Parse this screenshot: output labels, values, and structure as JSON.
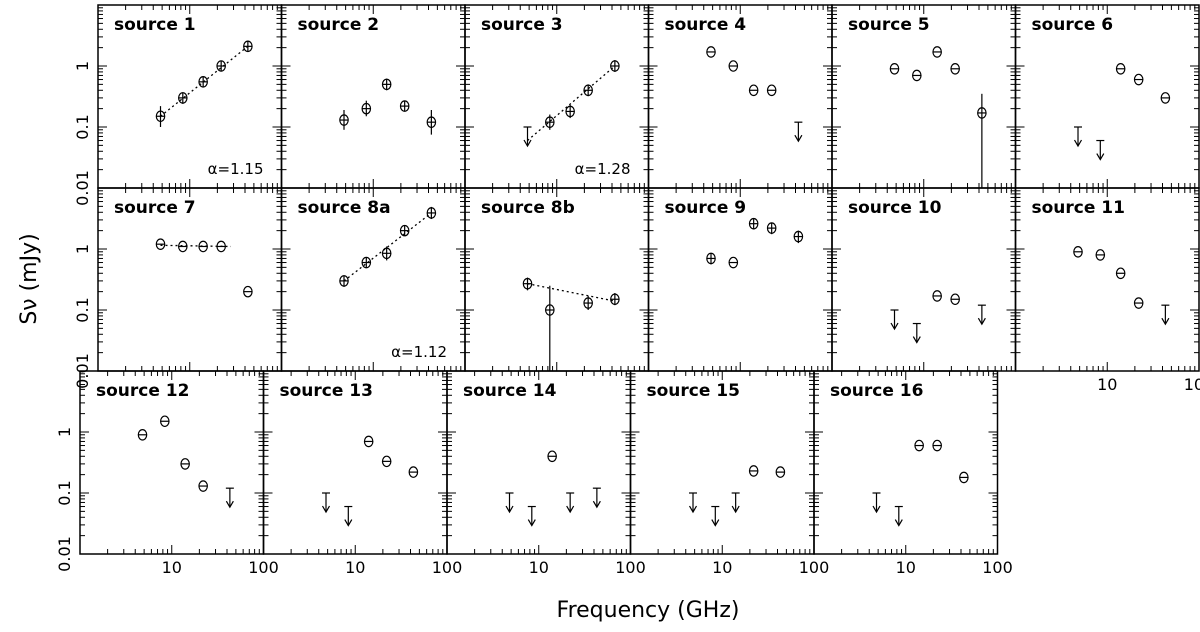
{
  "figure": {
    "ylabel": "Sν (mJy)",
    "xlabel": "Frequency (GHz)"
  },
  "chart_data": {
    "type": "scatter",
    "xscale": "log",
    "yscale": "log",
    "xlim": [
      1,
      100
    ],
    "ylim": [
      0.01,
      10
    ],
    "x_tick_labels": [
      "10",
      "100"
    ],
    "y_tick_labels": [
      "0.01",
      "0.1",
      "1"
    ],
    "xlabel": "Frequency (GHz)",
    "ylabel": "Sν (mJy)",
    "panels": [
      {
        "title": "source 1",
        "row": 0,
        "col": 0,
        "points": [
          {
            "x": 4.8,
            "y": 0.15,
            "err": [
              0.1,
              0.22
            ]
          },
          {
            "x": 8.4,
            "y": 0.3,
            "err": [
              0.24,
              0.37
            ]
          },
          {
            "x": 14,
            "y": 0.55,
            "err": [
              0.45,
              0.67
            ]
          },
          {
            "x": 22,
            "y": 1.0,
            "err": [
              0.82,
              1.22
            ]
          },
          {
            "x": 43,
            "y": 2.1,
            "err": [
              1.7,
              2.6
            ]
          }
        ],
        "upper_limits": [],
        "fit": {
          "x": [
            4.8,
            43
          ],
          "y": [
            0.15,
            2.1
          ]
        },
        "alpha_label": "α=1.15"
      },
      {
        "title": "source 2",
        "row": 0,
        "col": 1,
        "points": [
          {
            "x": 4.8,
            "y": 0.13,
            "err": [
              0.09,
              0.19
            ]
          },
          {
            "x": 8.4,
            "y": 0.2,
            "err": [
              0.15,
              0.27
            ]
          },
          {
            "x": 14,
            "y": 0.5,
            "err": [
              0.4,
              0.62
            ]
          },
          {
            "x": 22,
            "y": 0.22,
            "err": [
              0.18,
              0.27
            ]
          },
          {
            "x": 43,
            "y": 0.12,
            "err": [
              0.075,
              0.19
            ]
          }
        ],
        "upper_limits": []
      },
      {
        "title": "source 3",
        "row": 0,
        "col": 2,
        "points": [
          {
            "x": 8.4,
            "y": 0.12,
            "err": [
              0.09,
              0.16
            ]
          },
          {
            "x": 14,
            "y": 0.18,
            "err": [
              0.14,
              0.23
            ]
          },
          {
            "x": 22,
            "y": 0.4,
            "err": [
              0.32,
              0.5
            ]
          },
          {
            "x": 43,
            "y": 1.0,
            "err": [
              0.8,
              1.25
            ]
          }
        ],
        "upper_limits": [
          {
            "x": 4.8,
            "y": 0.1
          }
        ],
        "fit": {
          "x": [
            4.8,
            43
          ],
          "y": [
            0.06,
            1.0
          ]
        },
        "alpha_label": "α=1.28"
      },
      {
        "title": "source 4",
        "row": 0,
        "col": 3,
        "points": [
          {
            "x": 4.8,
            "y": 1.7
          },
          {
            "x": 8.4,
            "y": 1.0
          },
          {
            "x": 14,
            "y": 0.4
          },
          {
            "x": 22,
            "y": 0.4
          }
        ],
        "upper_limits": [
          {
            "x": 43,
            "y": 0.12
          }
        ]
      },
      {
        "title": "source 5",
        "row": 0,
        "col": 4,
        "points": [
          {
            "x": 4.8,
            "y": 0.9
          },
          {
            "x": 8.4,
            "y": 0.7
          },
          {
            "x": 14,
            "y": 1.7
          },
          {
            "x": 22,
            "y": 0.9
          },
          {
            "x": 43,
            "y": 0.17,
            "err": [
              0.01,
              0.35
            ]
          }
        ],
        "upper_limits": []
      },
      {
        "title": "source 6",
        "row": 0,
        "col": 5,
        "points": [
          {
            "x": 14,
            "y": 0.9
          },
          {
            "x": 22,
            "y": 0.6
          },
          {
            "x": 43,
            "y": 0.3
          }
        ],
        "upper_limits": [
          {
            "x": 4.8,
            "y": 0.1
          },
          {
            "x": 8.4,
            "y": 0.06
          }
        ]
      },
      {
        "title": "source 7",
        "row": 1,
        "col": 0,
        "points": [
          {
            "x": 4.8,
            "y": 1.2
          },
          {
            "x": 8.4,
            "y": 1.1
          },
          {
            "x": 14,
            "y": 1.1
          },
          {
            "x": 22,
            "y": 1.1
          },
          {
            "x": 43,
            "y": 0.2
          }
        ],
        "upper_limits": [],
        "fit": {
          "x": [
            4.8,
            28
          ],
          "y": [
            1.15,
            1.1
          ]
        }
      },
      {
        "title": "source 8a",
        "row": 1,
        "col": 1,
        "points": [
          {
            "x": 4.8,
            "y": 0.3,
            "err": [
              0.24,
              0.37
            ]
          },
          {
            "x": 8.4,
            "y": 0.6,
            "err": [
              0.49,
              0.73
            ]
          },
          {
            "x": 14,
            "y": 0.85,
            "err": [
              0.65,
              1.1
            ]
          },
          {
            "x": 22,
            "y": 2.0,
            "err": [
              1.65,
              2.4
            ]
          },
          {
            "x": 43,
            "y": 3.9,
            "err": [
              3.1,
              4.9
            ]
          }
        ],
        "upper_limits": [],
        "fit": {
          "x": [
            4.8,
            43
          ],
          "y": [
            0.3,
            3.9
          ]
        },
        "alpha_label": "α=1.12"
      },
      {
        "title": "source 8b",
        "row": 1,
        "col": 2,
        "points": [
          {
            "x": 4.8,
            "y": 0.27,
            "err": [
              0.21,
              0.34
            ]
          },
          {
            "x": 8.4,
            "y": 0.1,
            "err": [
              0.01,
              0.25
            ]
          },
          {
            "x": 22,
            "y": 0.13,
            "err": [
              0.1,
              0.17
            ]
          },
          {
            "x": 43,
            "y": 0.15,
            "err": [
              0.12,
              0.19
            ]
          }
        ],
        "upper_limits": [],
        "fit": {
          "x": [
            4.8,
            43
          ],
          "y": [
            0.27,
            0.14
          ]
        }
      },
      {
        "title": "source 9",
        "row": 1,
        "col": 3,
        "points": [
          {
            "x": 4.8,
            "y": 0.7,
            "err": [
              0.56,
              0.86
            ]
          },
          {
            "x": 8.4,
            "y": 0.6
          },
          {
            "x": 14,
            "y": 2.6,
            "err": [
              2.1,
              3.1
            ]
          },
          {
            "x": 22,
            "y": 2.2,
            "err": [
              1.75,
              2.7
            ]
          },
          {
            "x": 43,
            "y": 1.6,
            "err": [
              1.25,
              2.0
            ]
          }
        ],
        "upper_limits": []
      },
      {
        "title": "source 10",
        "row": 1,
        "col": 4,
        "points": [
          {
            "x": 14,
            "y": 0.17
          },
          {
            "x": 22,
            "y": 0.15
          }
        ],
        "upper_limits": [
          {
            "x": 4.8,
            "y": 0.1
          },
          {
            "x": 8.4,
            "y": 0.06
          },
          {
            "x": 43,
            "y": 0.12
          }
        ]
      },
      {
        "title": "source 11",
        "row": 1,
        "col": 5,
        "points": [
          {
            "x": 4.8,
            "y": 0.9
          },
          {
            "x": 8.4,
            "y": 0.8
          },
          {
            "x": 14,
            "y": 0.4
          },
          {
            "x": 22,
            "y": 0.13
          }
        ],
        "upper_limits": [
          {
            "x": 43,
            "y": 0.12
          }
        ]
      },
      {
        "title": "source 12",
        "row": 2,
        "col": 0,
        "points": [
          {
            "x": 4.8,
            "y": 0.9
          },
          {
            "x": 8.4,
            "y": 1.5
          },
          {
            "x": 14,
            "y": 0.3
          },
          {
            "x": 22,
            "y": 0.13
          }
        ],
        "upper_limits": [
          {
            "x": 43,
            "y": 0.12
          }
        ]
      },
      {
        "title": "source 13",
        "row": 2,
        "col": 1,
        "points": [
          {
            "x": 14,
            "y": 0.7
          },
          {
            "x": 22,
            "y": 0.33
          },
          {
            "x": 43,
            "y": 0.22
          }
        ],
        "upper_limits": [
          {
            "x": 4.8,
            "y": 0.1
          },
          {
            "x": 8.4,
            "y": 0.06
          }
        ]
      },
      {
        "title": "source 14",
        "row": 2,
        "col": 2,
        "points": [
          {
            "x": 14,
            "y": 0.4
          }
        ],
        "upper_limits": [
          {
            "x": 4.8,
            "y": 0.1
          },
          {
            "x": 8.4,
            "y": 0.06
          },
          {
            "x": 22,
            "y": 0.1
          },
          {
            "x": 43,
            "y": 0.12
          }
        ]
      },
      {
        "title": "source 15",
        "row": 2,
        "col": 3,
        "points": [
          {
            "x": 22,
            "y": 0.23
          },
          {
            "x": 43,
            "y": 0.22
          }
        ],
        "upper_limits": [
          {
            "x": 4.8,
            "y": 0.1
          },
          {
            "x": 8.4,
            "y": 0.06
          },
          {
            "x": 14,
            "y": 0.1
          }
        ]
      },
      {
        "title": "source 16",
        "row": 2,
        "col": 4,
        "points": [
          {
            "x": 14,
            "y": 0.6
          },
          {
            "x": 22,
            "y": 0.6
          },
          {
            "x": 43,
            "y": 0.18
          }
        ],
        "upper_limits": [
          {
            "x": 4.8,
            "y": 0.1
          },
          {
            "x": 8.4,
            "y": 0.06
          }
        ]
      }
    ]
  }
}
